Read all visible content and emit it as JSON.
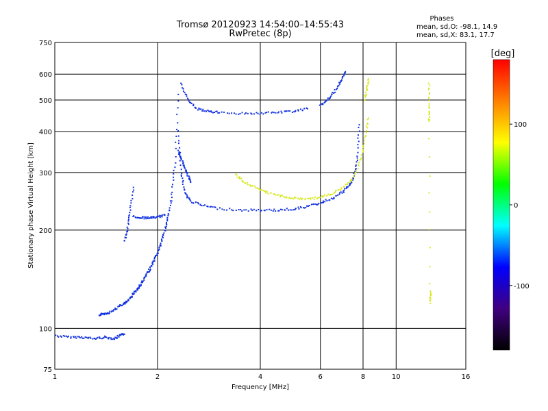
{
  "chart_data": {
    "type": "scatter",
    "title": "Tromsø 20120923 14:54:00–14:55:43",
    "subtitle": "RwPretec (8p)",
    "xlabel": "Frequency [MHz]",
    "ylabel": "Stationary phase Virtual Height [km]",
    "x_scale": "log",
    "y_scale": "log",
    "xlim": [
      1,
      16
    ],
    "ylim": [
      75,
      750
    ],
    "x_ticks": [
      1,
      2,
      4,
      6,
      8,
      10,
      16
    ],
    "y_ticks": [
      75,
      100,
      200,
      300,
      400,
      500,
      600,
      750
    ],
    "grid": true,
    "phase_info": {
      "heading": "Phases",
      "line_o": "mean, sd,O: -98.1, 14.9",
      "line_x": "mean, sd,X:  83.1, 17.7"
    },
    "colorbar": {
      "label": "[deg]",
      "range": [
        -180,
        180
      ],
      "ticks": [
        100,
        0,
        -100
      ],
      "colors": [
        "#ff0000",
        "#ff8000",
        "#ffff00",
        "#00ff00",
        "#00ffff",
        "#0000ff",
        "#400080",
        "#000000"
      ]
    },
    "series": [
      {
        "name": "O-mode (blue, ~-100 deg)",
        "color": "#1030e0",
        "segments": [
          {
            "x": [
              1.0,
              1.1,
              1.2,
              1.3,
              1.4,
              1.5,
              1.55,
              1.6
            ],
            "y": [
              95,
              94,
              94,
              93,
              94,
              93,
              95,
              96
            ]
          },
          {
            "x": [
              1.35,
              1.4,
              1.45,
              1.55,
              1.6,
              1.65,
              1.7,
              1.75,
              1.8,
              1.85,
              1.9,
              1.95,
              2.0,
              2.05,
              2.1,
              2.15,
              2.2,
              2.25,
              2.3
            ],
            "y": [
              110,
              111,
              112,
              117,
              119,
              122,
              128,
              132,
              138,
              145,
              152,
              160,
              170,
              182,
              200,
              220,
              250,
              320,
              520
            ]
          },
          {
            "x": [
              1.6,
              1.63,
              1.66,
              1.7
            ],
            "y": [
              185,
              200,
              225,
              270
            ]
          },
          {
            "x": [
              1.7,
              1.8,
              1.9,
              2.0,
              2.1
            ],
            "y": [
              220,
              218,
              218,
              219,
              222
            ]
          },
          {
            "x": [
              2.3,
              2.35,
              2.4,
              2.5,
              2.7,
              3.0,
              3.5,
              4.0,
              4.5,
              5.0,
              5.5,
              6.0,
              6.5,
              7.0,
              7.3,
              7.5,
              7.7,
              7.8
            ],
            "y": [
              400,
              300,
              260,
              245,
              238,
              233,
              230,
              230,
              230,
              232,
              236,
              242,
              250,
              262,
              275,
              290,
              330,
              420
            ]
          },
          {
            "x": [
              2.35,
              2.45,
              2.6,
              2.8,
              3.0,
              3.5,
              4.0,
              4.5,
              5.0,
              5.5
            ],
            "y": [
              560,
              500,
              470,
              462,
              458,
              455,
              455,
              458,
              462,
              470
            ]
          },
          {
            "x": [
              6.0,
              6.3,
              6.6,
              6.9,
              7.1
            ],
            "y": [
              480,
              500,
              530,
              570,
              610
            ]
          },
          {
            "x": [
              2.3,
              2.35,
              2.4,
              2.45,
              2.5
            ],
            "y": [
              350,
              330,
              310,
              295,
              280
            ]
          }
        ]
      },
      {
        "name": "X-mode (yellow, ~+100 deg)",
        "color": "#d8e820",
        "segments": [
          {
            "x": [
              3.4,
              3.6,
              3.9,
              4.2,
              4.6,
              5.0,
              5.5,
              6.0,
              6.5,
              7.0,
              7.5,
              7.9,
              8.1,
              8.3
            ],
            "y": [
              295,
              280,
              268,
              260,
              254,
              250,
              249,
              252,
              258,
              270,
              290,
              330,
              380,
              440
            ]
          },
          {
            "x": [
              8.1,
              8.2,
              8.3
            ],
            "y": [
              500,
              540,
              580
            ]
          },
          {
            "x": [
              12.5,
              12.5,
              12.5,
              12.6,
              12.6
            ],
            "y": [
              560,
              480,
              430,
              120,
              130
            ]
          }
        ]
      }
    ]
  }
}
